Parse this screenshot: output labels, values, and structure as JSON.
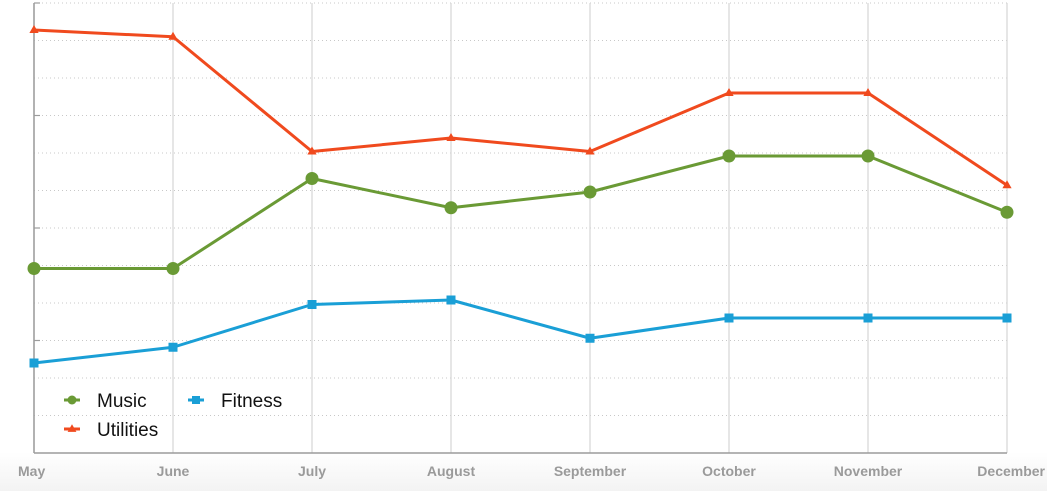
{
  "chart_data": {
    "type": "line",
    "categories": [
      "May",
      "June",
      "July",
      "August",
      "September",
      "October",
      "November",
      "December"
    ],
    "ylim": [
      0,
      100
    ],
    "grid": true,
    "legend_position": "bottom-left",
    "series": [
      {
        "name": "Music",
        "color": "#6a9a35",
        "marker": "circle",
        "values": [
          41,
          41,
          61,
          54.5,
          58,
          66,
          66,
          53.5
        ]
      },
      {
        "name": "Fitness",
        "color": "#1a9fd6",
        "marker": "square",
        "values": [
          20,
          23.5,
          33,
          34,
          25.5,
          30,
          30,
          30
        ]
      },
      {
        "name": "Utilities",
        "color": "#f04a1e",
        "marker": "triangle",
        "values": [
          94,
          92.5,
          67,
          70,
          67,
          80,
          80,
          59.5
        ]
      }
    ]
  }
}
